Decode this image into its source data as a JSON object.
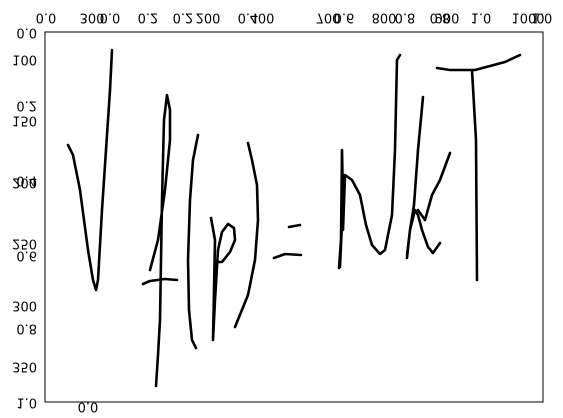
{
  "top_labels": [
    "0.0",
    "300",
    "0.0",
    "0.2",
    "0.2",
    "200",
    "0.4",
    "400",
    "700",
    "0.6",
    "800",
    "0.8",
    "0.8",
    "900",
    "1.0",
    "1000",
    "1.0"
  ],
  "left_labels": [
    "0.0",
    "100",
    "0.2",
    "150",
    "0.4",
    "200",
    "250",
    "0.6",
    "300",
    "0.8",
    "350",
    "1.0"
  ],
  "bottom_labels": [
    "0.0"
  ]
}
